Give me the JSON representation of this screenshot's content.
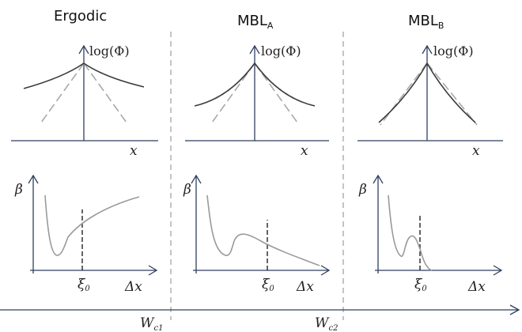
{
  "panels": [
    {
      "title": "Ergodic",
      "title_sub": ""
    },
    {
      "title": "MBL",
      "title_sub": "A"
    },
    {
      "title": "MBL",
      "title_sub": "B"
    }
  ],
  "top_plot": {
    "y_label": "log(Φ)",
    "x_label": "x"
  },
  "bottom_plot": {
    "y_label": "β",
    "x_label": "Δx",
    "marker_label": "ξ",
    "marker_sub": "0"
  },
  "transitions": [
    {
      "label": "W",
      "sub": "c1"
    },
    {
      "label": "W",
      "sub": "c2"
    }
  ]
}
